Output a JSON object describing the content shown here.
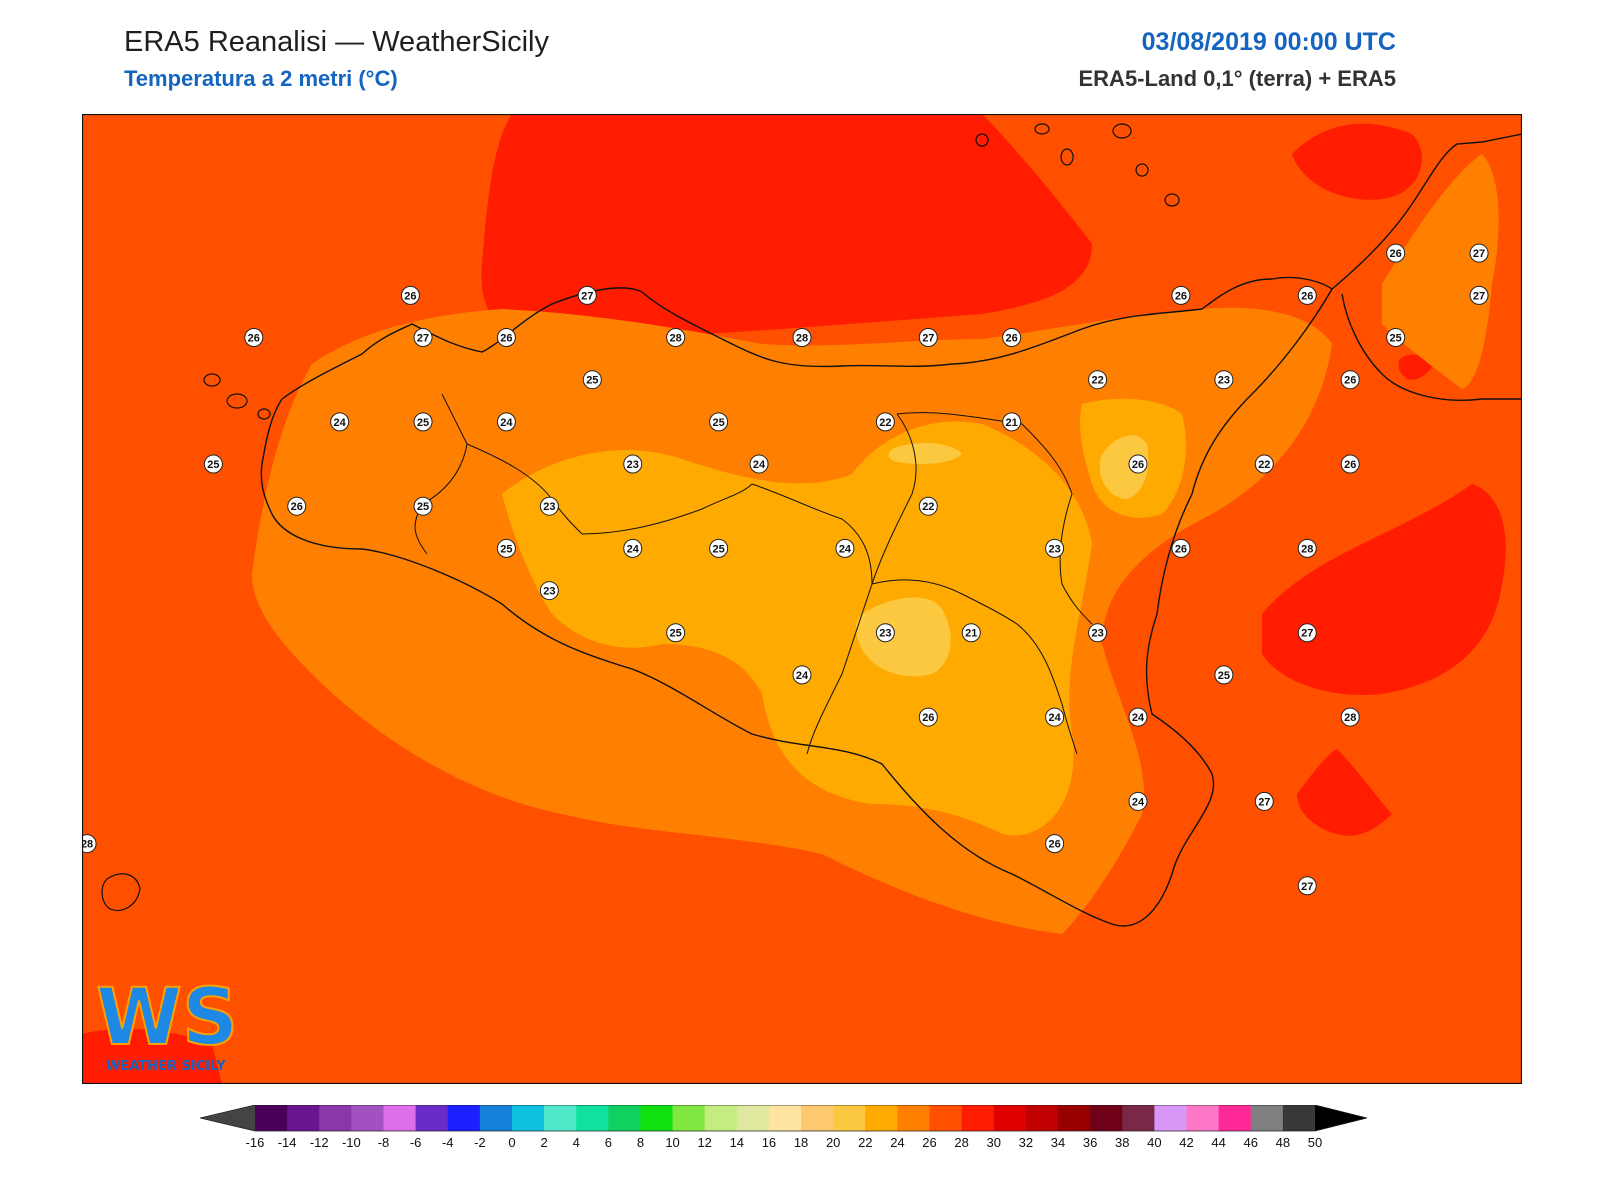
{
  "header": {
    "title": "ERA5 Reanalisi — WeatherSicily",
    "subtitle": "Temperatura a 2 metri (°C)",
    "datetime": "03/08/2019 00:00 UTC",
    "source": "ERA5-Land 0,1° (terra) + ERA5"
  },
  "logo": {
    "text": "WEATHER SICILY",
    "mark": "WS"
  },
  "colorbar": {
    "ticks": [
      "-16",
      "-14",
      "-12",
      "-10",
      "-8",
      "-6",
      "-4",
      "-2",
      "0",
      "2",
      "4",
      "6",
      "8",
      "10",
      "12",
      "14",
      "16",
      "18",
      "20",
      "22",
      "24",
      "26",
      "28",
      "30",
      "32",
      "34",
      "36",
      "38",
      "40",
      "42",
      "44",
      "46",
      "48",
      "50"
    ],
    "colors": [
      "#4a0058",
      "#6a1590",
      "#8a38a8",
      "#a252c0",
      "#dd70e8",
      "#6a2cc8",
      "#1a20ff",
      "#1480d8",
      "#10c0e0",
      "#50e8c8",
      "#10e0a0",
      "#10d060",
      "#10e010",
      "#80e840",
      "#c4ec80",
      "#e0e8a0",
      "#ffe4a0",
      "#fcc870",
      "#fcc840",
      "#ffaa00",
      "#ff8000",
      "#ff5000",
      "#ff1c00",
      "#e00000",
      "#c00000",
      "#980000",
      "#700018",
      "#7a2848",
      "#d898f8",
      "#ff78c8",
      "#ff2898",
      "#808080",
      "#383838"
    ],
    "under_color": "#444444",
    "over_color": "#000000"
  },
  "map": {
    "background_color": "#ff5000",
    "stations": [
      {
        "value": "26",
        "x": 13.1,
        "y": 38.17
      },
      {
        "value": "27",
        "x": 13.8,
        "y": 38.17
      },
      {
        "value": "26",
        "x": 12.48,
        "y": 38.07
      },
      {
        "value": "27",
        "x": 13.15,
        "y": 38.07
      },
      {
        "value": "26",
        "x": 13.48,
        "y": 38.07
      },
      {
        "value": "28",
        "x": 14.15,
        "y": 38.07
      },
      {
        "value": "28",
        "x": 14.65,
        "y": 38.07
      },
      {
        "value": "27",
        "x": 15.15,
        "y": 38.07
      },
      {
        "value": "26",
        "x": 15.48,
        "y": 38.07
      },
      {
        "value": "26",
        "x": 16.15,
        "y": 38.17
      },
      {
        "value": "26",
        "x": 16.65,
        "y": 38.17
      },
      {
        "value": "26",
        "x": 17.0,
        "y": 38.27
      },
      {
        "value": "27",
        "x": 17.33,
        "y": 38.27
      },
      {
        "value": "27",
        "x": 17.33,
        "y": 38.17
      },
      {
        "value": "25",
        "x": 17.0,
        "y": 38.07
      },
      {
        "value": "25",
        "x": 13.82,
        "y": 37.97
      },
      {
        "value": "22",
        "x": 15.82,
        "y": 37.97
      },
      {
        "value": "23",
        "x": 16.32,
        "y": 37.97
      },
      {
        "value": "26",
        "x": 16.82,
        "y": 37.97
      },
      {
        "value": "24",
        "x": 12.82,
        "y": 37.87
      },
      {
        "value": "25",
        "x": 13.15,
        "y": 37.87
      },
      {
        "value": "24",
        "x": 13.48,
        "y": 37.87
      },
      {
        "value": "25",
        "x": 14.32,
        "y": 37.87
      },
      {
        "value": "22",
        "x": 14.98,
        "y": 37.87
      },
      {
        "value": "21",
        "x": 15.48,
        "y": 37.87
      },
      {
        "value": "25",
        "x": 12.32,
        "y": 37.77
      },
      {
        "value": "23",
        "x": 13.98,
        "y": 37.77
      },
      {
        "value": "24",
        "x": 14.48,
        "y": 37.77
      },
      {
        "value": "26",
        "x": 15.98,
        "y": 37.77
      },
      {
        "value": "22",
        "x": 16.48,
        "y": 37.77
      },
      {
        "value": "26",
        "x": 16.82,
        "y": 37.77
      },
      {
        "value": "26",
        "x": 12.65,
        "y": 37.67
      },
      {
        "value": "25",
        "x": 13.15,
        "y": 37.67
      },
      {
        "value": "23",
        "x": 13.65,
        "y": 37.67
      },
      {
        "value": "22",
        "x": 15.15,
        "y": 37.67
      },
      {
        "value": "25",
        "x": 13.48,
        "y": 37.57
      },
      {
        "value": "24",
        "x": 13.98,
        "y": 37.57
      },
      {
        "value": "25",
        "x": 14.32,
        "y": 37.57
      },
      {
        "value": "24",
        "x": 14.82,
        "y": 37.57
      },
      {
        "value": "23",
        "x": 15.65,
        "y": 37.57
      },
      {
        "value": "26",
        "x": 16.15,
        "y": 37.57
      },
      {
        "value": "28",
        "x": 16.65,
        "y": 37.57
      },
      {
        "value": "23",
        "x": 13.65,
        "y": 37.47
      },
      {
        "value": "25",
        "x": 14.15,
        "y": 37.37
      },
      {
        "value": "23",
        "x": 14.98,
        "y": 37.37
      },
      {
        "value": "21",
        "x": 15.32,
        "y": 37.37
      },
      {
        "value": "23",
        "x": 15.82,
        "y": 37.37
      },
      {
        "value": "27",
        "x": 16.65,
        "y": 37.37
      },
      {
        "value": "25",
        "x": 16.32,
        "y": 37.27
      },
      {
        "value": "24",
        "x": 14.65,
        "y": 37.27
      },
      {
        "value": "26",
        "x": 15.15,
        "y": 37.17
      },
      {
        "value": "24",
        "x": 15.65,
        "y": 37.17
      },
      {
        "value": "24",
        "x": 15.98,
        "y": 37.17
      },
      {
        "value": "28",
        "x": 16.82,
        "y": 37.17
      },
      {
        "value": "24",
        "x": 15.98,
        "y": 36.97
      },
      {
        "value": "27",
        "x": 16.48,
        "y": 36.97
      },
      {
        "value": "26",
        "x": 15.65,
        "y": 36.87
      },
      {
        "value": "27",
        "x": 16.65,
        "y": 36.77
      },
      {
        "value": "28",
        "x": 11.82,
        "y": 36.87
      }
    ]
  }
}
